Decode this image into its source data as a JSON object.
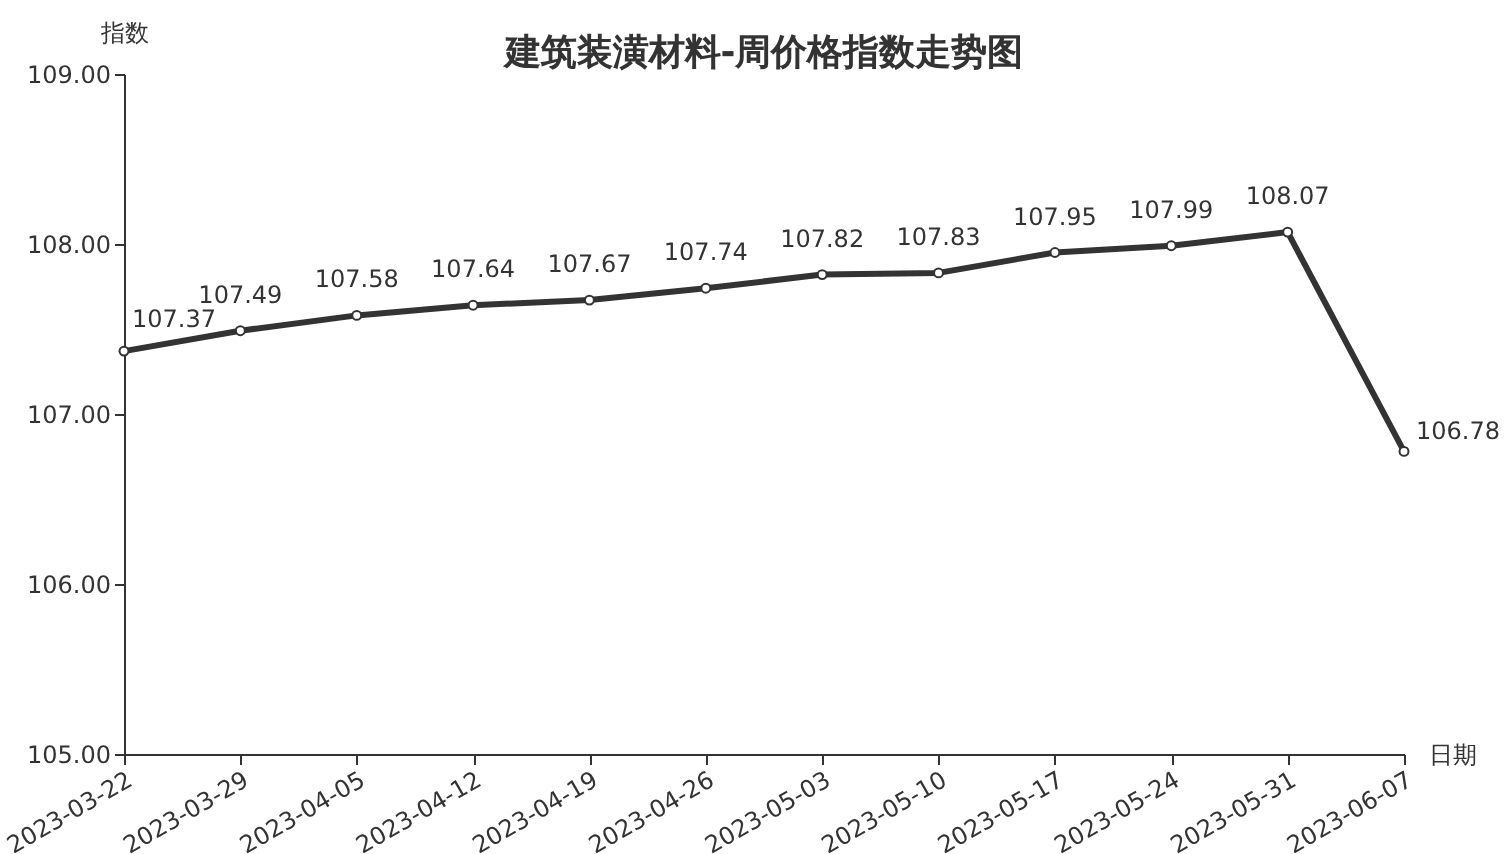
{
  "chart_data": {
    "type": "line",
    "title": "建筑装潢材料-周价格指数走势图",
    "xlabel": "日期",
    "ylabel": "指数",
    "categories": [
      "2023-03-22",
      "2023-03-29",
      "2023-04-05",
      "2023-04-12",
      "2023-04-19",
      "2023-04-26",
      "2023-05-03",
      "2023-05-10",
      "2023-05-17",
      "2023-05-24",
      "2023-05-31",
      "2023-06-07"
    ],
    "series": [
      {
        "color": "#333333",
        "values": [
          107.37,
          107.49,
          107.58,
          107.64,
          107.67,
          107.74,
          107.82,
          107.83,
          107.95,
          107.99,
          108.07,
          106.78
        ]
      }
    ],
    "ylim": [
      105,
      109
    ],
    "yticks": [
      {
        "value": 105,
        "label": "105.00"
      },
      {
        "value": 106,
        "label": "106.00"
      },
      {
        "value": 107,
        "label": "107.00"
      },
      {
        "value": 108,
        "label": "108.00"
      },
      {
        "value": 109,
        "label": "109.00"
      }
    ],
    "marker": "circle",
    "data_labels": true
  }
}
